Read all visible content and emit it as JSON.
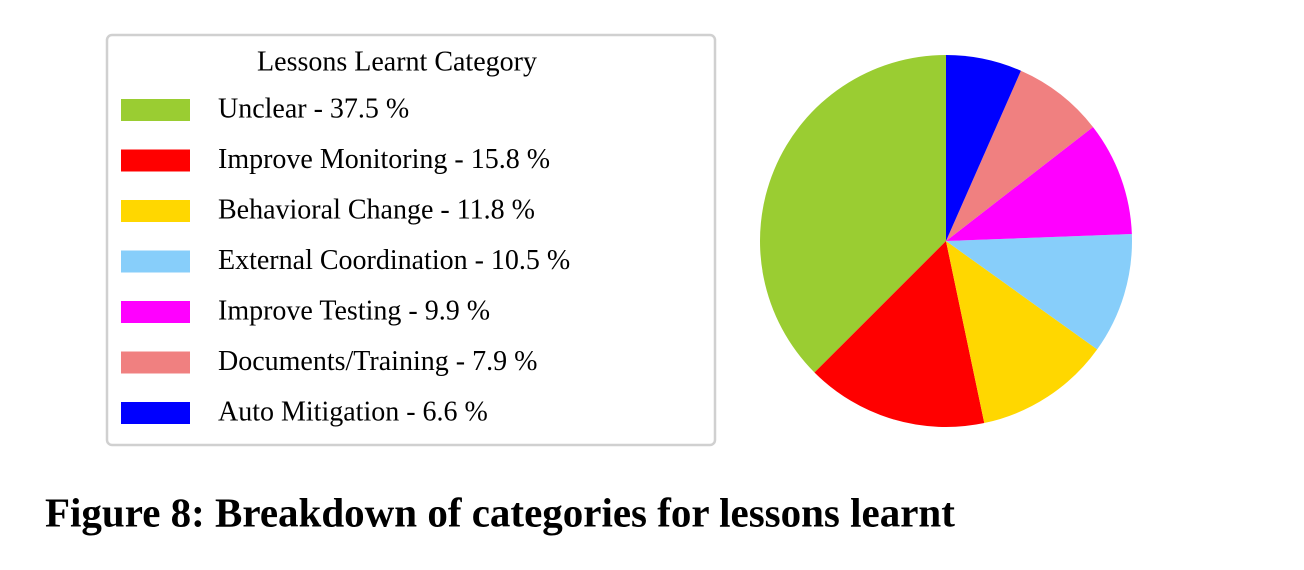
{
  "chart_data": {
    "type": "pie",
    "legend_title": "Lessons Learnt Category",
    "caption": "Figure 8: Breakdown of categories for lessons learnt",
    "categories": [
      "Unclear - 37.5 %",
      "Improve Monitoring - 15.8 %",
      "Behavioral Change - 11.8 %",
      "External Coordination - 10.5 %",
      "Improve Testing - 9.9 %",
      "Documents/Training - 7.9 %",
      "Auto Mitigation - 6.6 %"
    ],
    "values": [
      37.5,
      15.8,
      11.8,
      10.5,
      9.9,
      7.9,
      6.6
    ],
    "colors": [
      "#9acd32",
      "#ff0000",
      "#ffd700",
      "#87cefa",
      "#ff00ff",
      "#f08080",
      "#0000ff"
    ],
    "legend": "left"
  }
}
